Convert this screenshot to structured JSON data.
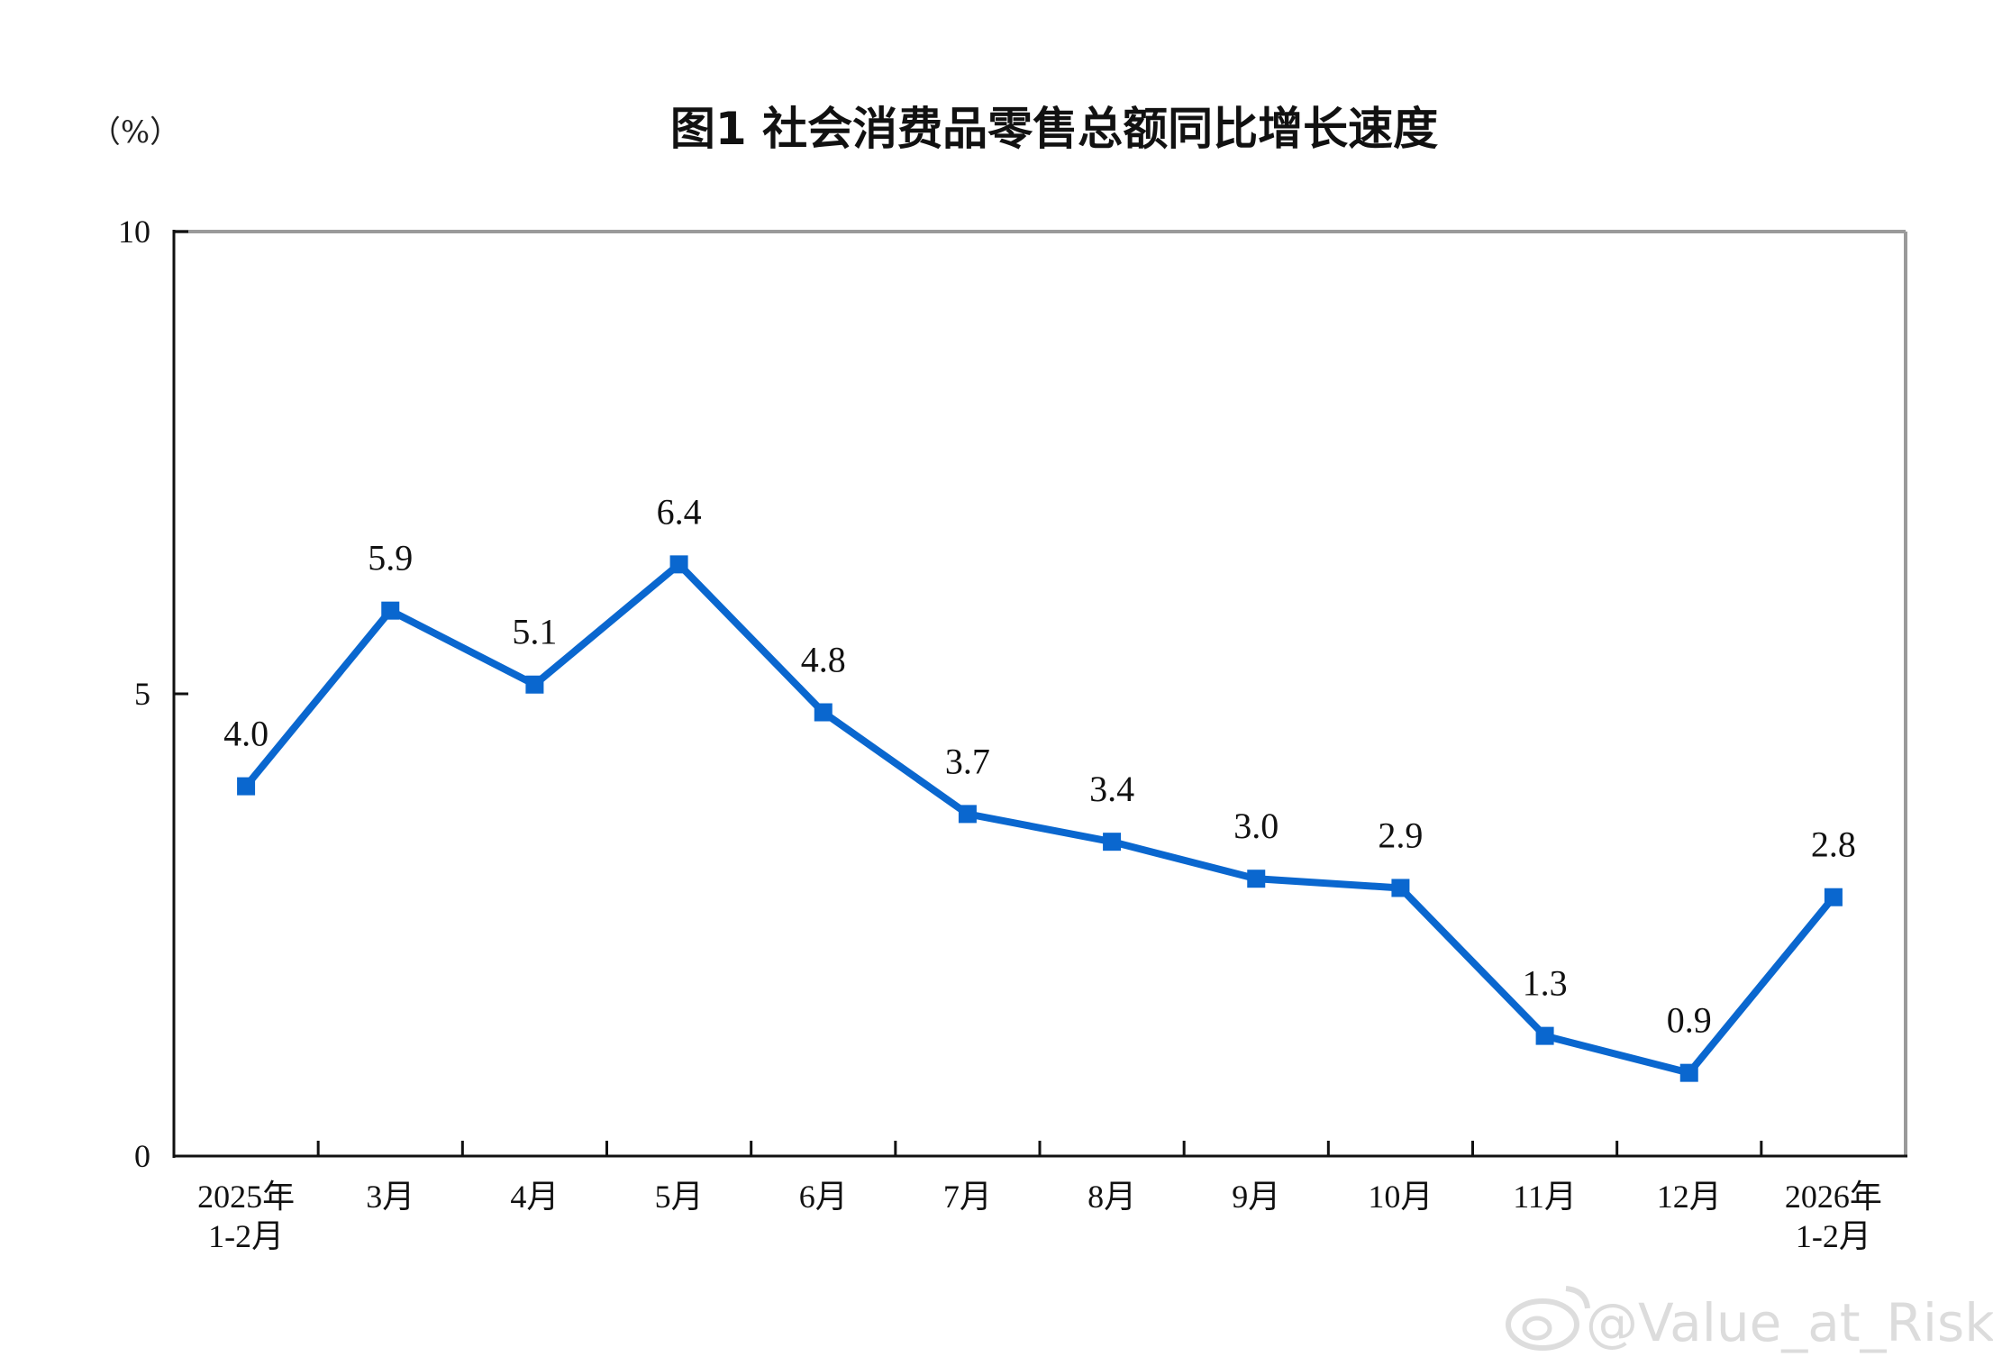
{
  "chart_data": {
    "type": "line",
    "title": "图1  社会消费品零售总额同比增长速度",
    "unit_label": "（%）",
    "categories": [
      [
        "2025年",
        "1-2月"
      ],
      [
        "3月"
      ],
      [
        "4月"
      ],
      [
        "5月"
      ],
      [
        "6月"
      ],
      [
        "7月"
      ],
      [
        "8月"
      ],
      [
        "9月"
      ],
      [
        "10月"
      ],
      [
        "11月"
      ],
      [
        "12月"
      ],
      [
        "2026年",
        "1-2月"
      ]
    ],
    "series": [
      {
        "values": [
          4.0,
          5.9,
          5.1,
          6.4,
          4.8,
          3.7,
          3.4,
          3.0,
          2.9,
          1.3,
          0.9,
          2.8
        ],
        "labels": [
          "4.0",
          "5.9",
          "5.1",
          "6.4",
          "4.8",
          "3.7",
          "3.4",
          "3.0",
          "2.9",
          "1.3",
          "0.9",
          "2.8"
        ],
        "color": "#0a67cf"
      }
    ],
    "ylim": [
      0,
      10
    ],
    "yticks": [
      0,
      5,
      10
    ],
    "ytick_labels": [
      "0",
      "5",
      "10"
    ],
    "grid": false,
    "legend": "none",
    "frame_color": "#9a9a9a",
    "axis_color": "#111111"
  },
  "watermark": "@Value_at_Risk"
}
